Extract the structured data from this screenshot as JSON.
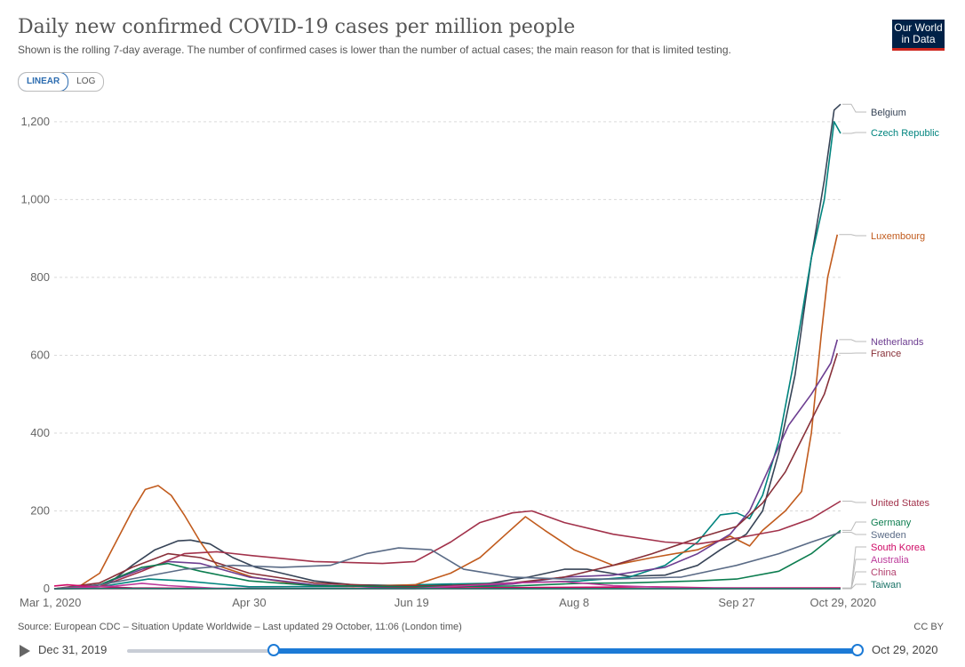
{
  "header": {
    "title": "Daily new confirmed COVID-19 cases per million people",
    "subtitle": "Shown is the rolling 7-day average. The number of confirmed cases is lower than the number of actual cases; the main reason for that is limited testing.",
    "logo_line1": "Our World",
    "logo_line2": "in Data"
  },
  "controls": {
    "linear_label": "LINEAR",
    "log_label": "LOG",
    "active_scale": "linear"
  },
  "footer": {
    "source": "Source: European CDC – Situation Update Worldwide – Last updated 29 October, 11:06 (London time)",
    "license": "CC BY"
  },
  "timeline": {
    "start_label": "Dec 31, 2019",
    "end_label": "Oct 29, 2020",
    "selection_start": 0.2,
    "selection_end": 1.0
  },
  "chart_data": {
    "type": "line",
    "title": "Daily new confirmed COVID-19 cases per million people",
    "ylabel": "",
    "xlabel": "",
    "x_range": [
      "2020-03-01",
      "2020-10-29"
    ],
    "ylim": [
      0,
      1250
    ],
    "yticks": [
      0,
      200,
      400,
      600,
      800,
      1000,
      1200
    ],
    "ytick_labels": [
      "0",
      "200",
      "400",
      "600",
      "800",
      "1,000",
      "1,200"
    ],
    "xticks": [
      "2020-03-01",
      "2020-04-30",
      "2020-06-19",
      "2020-08-08",
      "2020-09-27",
      "2020-10-29"
    ],
    "xtick_labels": [
      "Mar 1, 2020",
      "Apr 30",
      "Jun 19",
      "Aug 8",
      "Sep 27",
      "Oct 29, 2020"
    ],
    "grid": true,
    "legend": "right (line-end labels)",
    "series": [
      {
        "name": "Belgium",
        "color": "#374457",
        "points": [
          [
            "2020-03-01",
            0
          ],
          [
            "2020-03-10",
            1
          ],
          [
            "2020-03-18",
            15
          ],
          [
            "2020-03-25",
            60
          ],
          [
            "2020-04-01",
            100
          ],
          [
            "2020-04-08",
            123
          ],
          [
            "2020-04-12",
            125
          ],
          [
            "2020-04-18",
            115
          ],
          [
            "2020-04-25",
            80
          ],
          [
            "2020-05-02",
            55
          ],
          [
            "2020-05-10",
            40
          ],
          [
            "2020-05-20",
            20
          ],
          [
            "2020-06-01",
            10
          ],
          [
            "2020-06-20",
            8
          ],
          [
            "2020-07-10",
            10
          ],
          [
            "2020-07-25",
            30
          ],
          [
            "2020-08-05",
            50
          ],
          [
            "2020-08-12",
            50
          ],
          [
            "2020-08-25",
            32
          ],
          [
            "2020-09-05",
            35
          ],
          [
            "2020-09-15",
            60
          ],
          [
            "2020-09-22",
            100
          ],
          [
            "2020-09-30",
            140
          ],
          [
            "2020-10-05",
            200
          ],
          [
            "2020-10-10",
            350
          ],
          [
            "2020-10-15",
            550
          ],
          [
            "2020-10-20",
            850
          ],
          [
            "2020-10-24",
            1050
          ],
          [
            "2020-10-27",
            1230
          ],
          [
            "2020-10-29",
            1245
          ]
        ]
      },
      {
        "name": "Czech Republic",
        "color": "#00847e",
        "points": [
          [
            "2020-03-01",
            0
          ],
          [
            "2020-03-15",
            5
          ],
          [
            "2020-03-30",
            25
          ],
          [
            "2020-04-10",
            20
          ],
          [
            "2020-04-30",
            5
          ],
          [
            "2020-05-30",
            6
          ],
          [
            "2020-06-30",
            12
          ],
          [
            "2020-07-20",
            15
          ],
          [
            "2020-08-10",
            20
          ],
          [
            "2020-08-25",
            30
          ],
          [
            "2020-09-05",
            60
          ],
          [
            "2020-09-15",
            120
          ],
          [
            "2020-09-22",
            190
          ],
          [
            "2020-09-27",
            195
          ],
          [
            "2020-10-01",
            180
          ],
          [
            "2020-10-05",
            240
          ],
          [
            "2020-10-10",
            380
          ],
          [
            "2020-10-15",
            600
          ],
          [
            "2020-10-20",
            850
          ],
          [
            "2020-10-24",
            1000
          ],
          [
            "2020-10-27",
            1200
          ],
          [
            "2020-10-29",
            1170
          ]
        ]
      },
      {
        "name": "Luxembourg",
        "color": "#c15b1d",
        "points": [
          [
            "2020-03-01",
            0
          ],
          [
            "2020-03-08",
            2
          ],
          [
            "2020-03-15",
            40
          ],
          [
            "2020-03-20",
            120
          ],
          [
            "2020-03-25",
            200
          ],
          [
            "2020-03-29",
            255
          ],
          [
            "2020-04-02",
            265
          ],
          [
            "2020-04-06",
            240
          ],
          [
            "2020-04-10",
            190
          ],
          [
            "2020-04-15",
            120
          ],
          [
            "2020-04-20",
            60
          ],
          [
            "2020-05-01",
            30
          ],
          [
            "2020-05-15",
            12
          ],
          [
            "2020-06-01",
            6
          ],
          [
            "2020-06-20",
            10
          ],
          [
            "2020-07-01",
            40
          ],
          [
            "2020-07-10",
            80
          ],
          [
            "2020-07-18",
            140
          ],
          [
            "2020-07-24",
            185
          ],
          [
            "2020-07-30",
            150
          ],
          [
            "2020-08-08",
            100
          ],
          [
            "2020-08-20",
            60
          ],
          [
            "2020-09-01",
            80
          ],
          [
            "2020-09-15",
            100
          ],
          [
            "2020-09-25",
            135
          ],
          [
            "2020-10-01",
            110
          ],
          [
            "2020-10-05",
            150
          ],
          [
            "2020-10-12",
            200
          ],
          [
            "2020-10-17",
            250
          ],
          [
            "2020-10-20",
            400
          ],
          [
            "2020-10-23",
            650
          ],
          [
            "2020-10-25",
            800
          ],
          [
            "2020-10-28",
            910
          ]
        ]
      },
      {
        "name": "Netherlands",
        "color": "#6d3e91",
        "points": [
          [
            "2020-03-01",
            0
          ],
          [
            "2020-03-15",
            10
          ],
          [
            "2020-03-28",
            50
          ],
          [
            "2020-04-05",
            70
          ],
          [
            "2020-04-15",
            65
          ],
          [
            "2020-04-30",
            30
          ],
          [
            "2020-05-20",
            10
          ],
          [
            "2020-06-10",
            4
          ],
          [
            "2020-07-01",
            4
          ],
          [
            "2020-07-20",
            12
          ],
          [
            "2020-08-05",
            30
          ],
          [
            "2020-08-20",
            35
          ],
          [
            "2020-09-05",
            55
          ],
          [
            "2020-09-15",
            90
          ],
          [
            "2020-09-25",
            140
          ],
          [
            "2020-10-01",
            200
          ],
          [
            "2020-10-07",
            310
          ],
          [
            "2020-10-13",
            420
          ],
          [
            "2020-10-20",
            500
          ],
          [
            "2020-10-26",
            580
          ],
          [
            "2020-10-28",
            640
          ]
        ]
      },
      {
        "name": "France",
        "color": "#883039",
        "points": [
          [
            "2020-03-01",
            0
          ],
          [
            "2020-03-15",
            15
          ],
          [
            "2020-03-25",
            55
          ],
          [
            "2020-04-05",
            90
          ],
          [
            "2020-04-15",
            80
          ],
          [
            "2020-04-30",
            40
          ],
          [
            "2020-05-20",
            15
          ],
          [
            "2020-06-10",
            7
          ],
          [
            "2020-07-01",
            8
          ],
          [
            "2020-07-20",
            15
          ],
          [
            "2020-08-05",
            30
          ],
          [
            "2020-08-20",
            60
          ],
          [
            "2020-09-01",
            90
          ],
          [
            "2020-09-15",
            130
          ],
          [
            "2020-09-27",
            160
          ],
          [
            "2020-10-05",
            220
          ],
          [
            "2020-10-12",
            300
          ],
          [
            "2020-10-18",
            400
          ],
          [
            "2020-10-24",
            500
          ],
          [
            "2020-10-28",
            605
          ]
        ]
      },
      {
        "name": "United States",
        "color": "#a2324b",
        "points": [
          [
            "2020-03-01",
            0
          ],
          [
            "2020-03-15",
            5
          ],
          [
            "2020-03-28",
            45
          ],
          [
            "2020-04-10",
            90
          ],
          [
            "2020-04-20",
            95
          ],
          [
            "2020-05-01",
            85
          ],
          [
            "2020-05-20",
            70
          ],
          [
            "2020-06-10",
            65
          ],
          [
            "2020-06-20",
            70
          ],
          [
            "2020-07-01",
            120
          ],
          [
            "2020-07-10",
            170
          ],
          [
            "2020-07-20",
            195
          ],
          [
            "2020-07-26",
            200
          ],
          [
            "2020-08-05",
            170
          ],
          [
            "2020-08-20",
            140
          ],
          [
            "2020-09-05",
            120
          ],
          [
            "2020-09-15",
            115
          ],
          [
            "2020-09-27",
            130
          ],
          [
            "2020-10-10",
            150
          ],
          [
            "2020-10-20",
            180
          ],
          [
            "2020-10-29",
            225
          ]
        ]
      },
      {
        "name": "Germany",
        "color": "#0c7d4f",
        "points": [
          [
            "2020-03-01",
            0
          ],
          [
            "2020-03-15",
            10
          ],
          [
            "2020-03-28",
            55
          ],
          [
            "2020-04-05",
            65
          ],
          [
            "2020-04-15",
            45
          ],
          [
            "2020-04-30",
            20
          ],
          [
            "2020-05-20",
            8
          ],
          [
            "2020-06-20",
            5
          ],
          [
            "2020-07-20",
            7
          ],
          [
            "2020-08-10",
            14
          ],
          [
            "2020-08-25",
            15
          ],
          [
            "2020-09-15",
            20
          ],
          [
            "2020-09-27",
            25
          ],
          [
            "2020-10-10",
            45
          ],
          [
            "2020-10-20",
            90
          ],
          [
            "2020-10-29",
            150
          ]
        ]
      },
      {
        "name": "Sweden",
        "color": "#5a6b86",
        "points": [
          [
            "2020-03-01",
            0
          ],
          [
            "2020-03-15",
            10
          ],
          [
            "2020-03-28",
            30
          ],
          [
            "2020-04-10",
            50
          ],
          [
            "2020-04-25",
            60
          ],
          [
            "2020-05-10",
            55
          ],
          [
            "2020-05-25",
            60
          ],
          [
            "2020-06-05",
            90
          ],
          [
            "2020-06-15",
            105
          ],
          [
            "2020-06-25",
            100
          ],
          [
            "2020-07-05",
            50
          ],
          [
            "2020-07-20",
            30
          ],
          [
            "2020-08-05",
            25
          ],
          [
            "2020-08-20",
            25
          ],
          [
            "2020-09-10",
            30
          ],
          [
            "2020-09-27",
            60
          ],
          [
            "2020-10-10",
            90
          ],
          [
            "2020-10-20",
            120
          ],
          [
            "2020-10-29",
            145
          ]
        ]
      },
      {
        "name": "South Korea",
        "color": "#cf0a66",
        "points": [
          [
            "2020-03-01",
            7
          ],
          [
            "2020-03-05",
            10
          ],
          [
            "2020-03-12",
            6
          ],
          [
            "2020-03-25",
            2
          ],
          [
            "2020-04-15",
            1
          ],
          [
            "2020-05-15",
            0.5
          ],
          [
            "2020-08-20",
            4
          ],
          [
            "2020-09-01",
            5
          ],
          [
            "2020-09-20",
            2
          ],
          [
            "2020-10-29",
            2
          ]
        ]
      },
      {
        "name": "Australia",
        "color": "#bc3b9b",
        "points": [
          [
            "2020-03-01",
            0
          ],
          [
            "2020-03-20",
            7
          ],
          [
            "2020-03-28",
            14
          ],
          [
            "2020-04-05",
            8
          ],
          [
            "2020-04-20",
            1
          ],
          [
            "2020-06-20",
            0.5
          ],
          [
            "2020-07-20",
            15
          ],
          [
            "2020-08-05",
            18
          ],
          [
            "2020-08-20",
            8
          ],
          [
            "2020-09-10",
            2
          ],
          [
            "2020-10-29",
            0.5
          ]
        ]
      },
      {
        "name": "China",
        "color": "#b3416f",
        "points": [
          [
            "2020-03-01",
            0.3
          ],
          [
            "2020-03-20",
            0.1
          ],
          [
            "2020-10-29",
            0.02
          ]
        ]
      },
      {
        "name": "Taiwan",
        "color": "#1a7367",
        "points": [
          [
            "2020-03-01",
            0
          ],
          [
            "2020-03-20",
            0.8
          ],
          [
            "2020-04-05",
            0.4
          ],
          [
            "2020-10-29",
            0.05
          ]
        ]
      }
    ],
    "legend_labels": [
      {
        "name": "Belgium",
        "color": "#374457"
      },
      {
        "name": "Czech Republic",
        "color": "#00847e"
      },
      {
        "name": "Luxembourg",
        "color": "#c15b1d"
      },
      {
        "name": "Netherlands",
        "color": "#6d3e91"
      },
      {
        "name": "France",
        "color": "#883039"
      },
      {
        "name": "United States",
        "color": "#a2324b"
      },
      {
        "name": "Germany",
        "color": "#0c7d4f"
      },
      {
        "name": "Sweden",
        "color": "#5a6b86"
      },
      {
        "name": "South Korea",
        "color": "#cf0a66"
      },
      {
        "name": "Australia",
        "color": "#bc3b9b"
      },
      {
        "name": "China",
        "color": "#b3416f"
      },
      {
        "name": "Taiwan",
        "color": "#1a7367"
      }
    ]
  }
}
